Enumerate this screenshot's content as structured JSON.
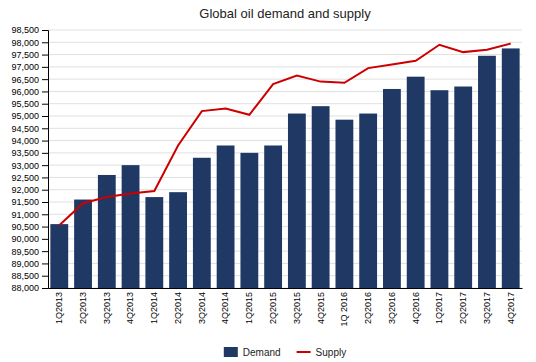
{
  "chart_data": {
    "type": "bar",
    "title": "Global oil demand and supply",
    "categories": [
      "1Q2013",
      "2Q2013",
      "3Q2013",
      "4Q2013",
      "1Q2014",
      "2Q2014",
      "3Q2014",
      "4Q2014",
      "1Q2015",
      "2Q2015",
      "3Q2015",
      "4Q2015",
      "1Q 2016",
      "2Q2016",
      "3Q2016",
      "4Q2016",
      "1Q2017",
      "2Q2017",
      "3Q2017",
      "4Q2017"
    ],
    "series": [
      {
        "name": "Demand",
        "type": "bar",
        "color": "#1F3864",
        "values": [
          90600,
          91600,
          92600,
          93000,
          91700,
          91900,
          93300,
          93800,
          93500,
          93800,
          95100,
          95400,
          94850,
          95100,
          96100,
          96600,
          96050,
          96200,
          97450,
          97750
        ]
      },
      {
        "name": "Supply",
        "type": "line",
        "color": "#CC0000",
        "values": [
          90550,
          91450,
          91700,
          91850,
          91950,
          93800,
          95200,
          95300,
          95050,
          96300,
          96650,
          96400,
          96350,
          96950,
          97100,
          97250,
          97900,
          97600,
          97700,
          97950
        ]
      }
    ],
    "ylim": [
      88000,
      98500
    ],
    "yticks": [
      {
        "value": 88000,
        "label": "88,000"
      },
      {
        "value": 88500,
        "label": "88,500"
      },
      {
        "value": 89000,
        "label": "89,000"
      },
      {
        "value": 89500,
        "label": "89,500"
      },
      {
        "value": 90000,
        "label": "90,000"
      },
      {
        "value": 90500,
        "label": "90,500"
      },
      {
        "value": 91000,
        "label": "91,000"
      },
      {
        "value": 91500,
        "label": "91,500"
      },
      {
        "value": 92000,
        "label": "92,000"
      },
      {
        "value": 92500,
        "label": "92,500"
      },
      {
        "value": 93000,
        "label": "93,000"
      },
      {
        "value": 93500,
        "label": "93,500"
      },
      {
        "value": 94000,
        "label": "94,000"
      },
      {
        "value": 94500,
        "label": "94,500"
      },
      {
        "value": 95000,
        "label": "95,000"
      },
      {
        "value": 95500,
        "label": "95,500"
      },
      {
        "value": 96000,
        "label": "96,000"
      },
      {
        "value": 96500,
        "label": "96,500"
      },
      {
        "value": 97000,
        "label": "97,000"
      },
      {
        "value": 97500,
        "label": "97,500"
      },
      {
        "value": 98000,
        "label": "98,000"
      },
      {
        "value": 98500,
        "label": "98,500"
      }
    ],
    "grid": true,
    "legend": "bottom"
  }
}
